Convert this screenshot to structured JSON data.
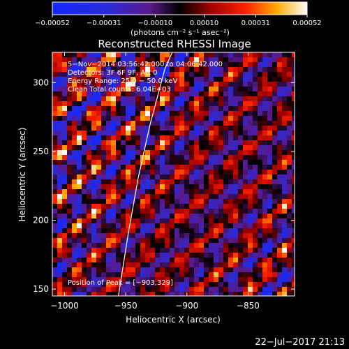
{
  "chart_data": {
    "type": "heatmap",
    "title": "Reconstructed RHESSI Image",
    "xlabel": "Heliocentric X (arcsec)",
    "ylabel": "Heliocentric Y (arcsec)",
    "xlim": [
      -1010,
      -812
    ],
    "ylim": [
      145,
      322
    ],
    "x_ticks": [
      -1000,
      -950,
      -900,
      -850
    ],
    "x_tick_labels": [
      "−1000",
      "−950",
      "−900",
      "−850"
    ],
    "y_ticks": [
      150,
      200,
      250,
      300
    ],
    "y_tick_labels": [
      "150",
      "200",
      "250",
      "300"
    ],
    "colorbar": {
      "range": [
        -0.00052,
        0.00052
      ],
      "ticks": [
        -0.00052,
        -0.00031,
        -0.0001,
        0.0001,
        0.00031,
        0.00052
      ],
      "tick_labels": [
        "−0.00052",
        "−0.00031",
        "−0.00010",
        "0.00010",
        "0.00031",
        "0.00052"
      ],
      "unit_label": "(photons cm⁻² s⁻¹ asec⁻²)"
    },
    "annotations": [
      "5−Nov−2014 03:56:42.000 to 04:06:42.000",
      "Detectors: 3F 6F 9F, Att 0",
      "Energy Range: 25.0 − 50.0 keV",
      "Clean     Total counts: 6.04E+03"
    ],
    "peak_label": "Position of Peak = [−903,329]",
    "limb": [
      [
        -956,
        145
      ],
      [
        -948,
        190
      ],
      [
        -940,
        230
      ],
      [
        -930,
        270
      ],
      [
        -918,
        310
      ],
      [
        -912,
        322
      ]
    ],
    "grid": false,
    "legend": "none"
  },
  "footer": {
    "date": "22−Jul−2017 21:13"
  },
  "colors": {
    "background": "#000000",
    "foreground": "#ffffff"
  }
}
